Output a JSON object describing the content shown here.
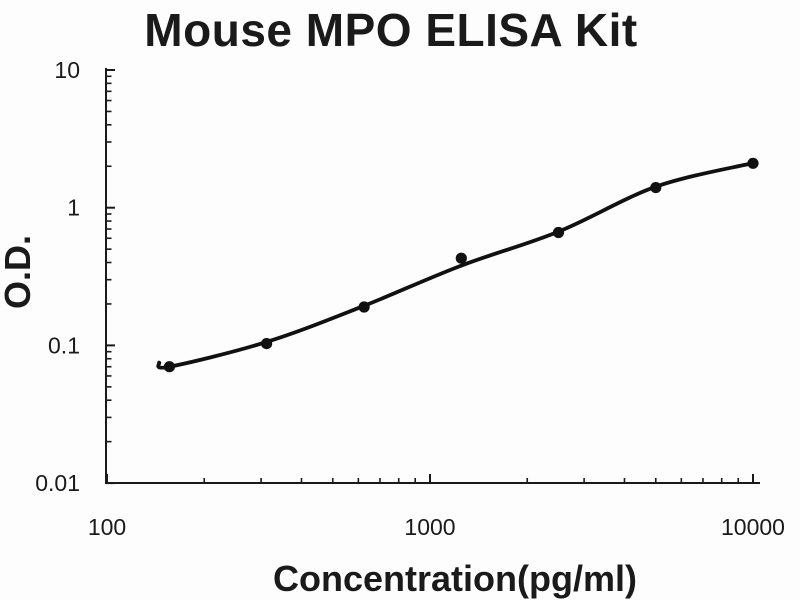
{
  "figure": {
    "title": "Mouse MPO ELISA Kit",
    "background": "#fdfdfd",
    "ink_color": "#1a1a1a"
  },
  "chart_data": {
    "type": "line",
    "title": "Mouse MPO ELISA Kit",
    "xlabel": "Concentration(pg/ml)",
    "ylabel": "O.D.",
    "x_scale": "log",
    "y_scale": "log",
    "xlim": [
      100,
      10000
    ],
    "ylim": [
      0.01,
      10
    ],
    "x_ticks": [
      100,
      1000,
      10000
    ],
    "x_tick_labels": [
      "100",
      "1000",
      "10000"
    ],
    "y_ticks": [
      10,
      1,
      0.1,
      0.01
    ],
    "y_tick_labels": [
      "10",
      "1",
      "0.1",
      "0.01"
    ],
    "minor_ticks": true,
    "grid": false,
    "legend": false,
    "line_color": "#111111",
    "marker_color": "#111111",
    "series": [
      {
        "name": "standard-points",
        "type": "scatter",
        "marker": "circle",
        "x": [
          156,
          312,
          625,
          1250,
          2500,
          5000,
          10000
        ],
        "y": [
          0.07,
          0.103,
          0.19,
          0.43,
          0.66,
          1.4,
          2.1
        ]
      },
      {
        "name": "fitted-curve",
        "type": "line",
        "x": [
          145,
          156,
          312,
          625,
          1250,
          2500,
          5000,
          10000
        ],
        "y": [
          0.075,
          0.07,
          0.106,
          0.194,
          0.38,
          0.67,
          1.42,
          2.11
        ]
      }
    ]
  }
}
